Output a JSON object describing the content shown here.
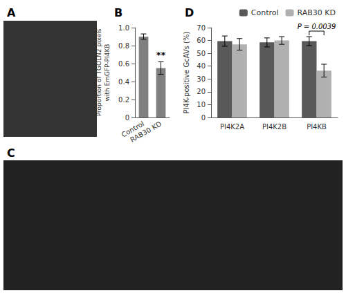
{
  "chart_data": [
    {
      "type": "bar",
      "title": "B",
      "categories": [
        "Control",
        "RAB30 KD"
      ],
      "values": [
        0.9,
        0.55
      ],
      "errors": [
        0.03,
        0.07
      ],
      "color": "#808080",
      "ylabel": "Proportion of TGOLN2 pixels\nwith EmGFP-PI4KB",
      "ylim": [
        0,
        1.0
      ],
      "yticks": [
        0,
        0.2,
        0.4,
        0.6,
        0.8,
        {
          "value": 1.0,
          "label": "1.0"
        }
      ],
      "grid": false,
      "annotations": [
        {
          "text": "**",
          "x": "RAB30 KD"
        }
      ]
    },
    {
      "type": "bar",
      "title": "D",
      "categories": [
        "PI4K2A",
        "PI4K2B",
        "PI4KB"
      ],
      "series": [
        {
          "name": "Control",
          "color": "#595959",
          "values": [
            59.5,
            58.5,
            59.5
          ],
          "errors": [
            4.0,
            3.5,
            3.5
          ]
        },
        {
          "name": "RAB30 KD",
          "color": "#b0b0b0",
          "values": [
            57.0,
            60.0,
            36.5
          ],
          "errors": [
            4.5,
            3.0,
            5.0
          ]
        }
      ],
      "ylabel": "PI4K-positive GcAVs (%)",
      "ylim": [
        0,
        70
      ],
      "yticks": [
        0,
        10,
        20,
        30,
        40,
        50,
        60,
        70
      ],
      "grid": false,
      "legend": "upper right",
      "annotations": [
        {
          "text": "P = 0.0039",
          "x": "PI4KB"
        }
      ]
    },
    {
      "type": "image",
      "title": "A",
      "color": "#333333"
    },
    {
      "type": "image",
      "title": "C",
      "color": "#222222"
    }
  ]
}
